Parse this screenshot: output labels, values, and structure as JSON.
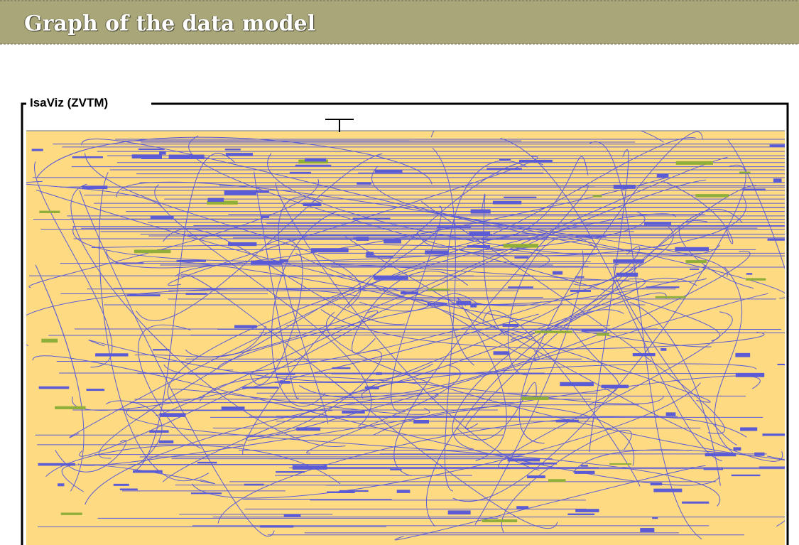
{
  "header": {
    "title": "Graph of the data model"
  },
  "panel": {
    "legend": "IsaViz (ZVTM)"
  }
}
